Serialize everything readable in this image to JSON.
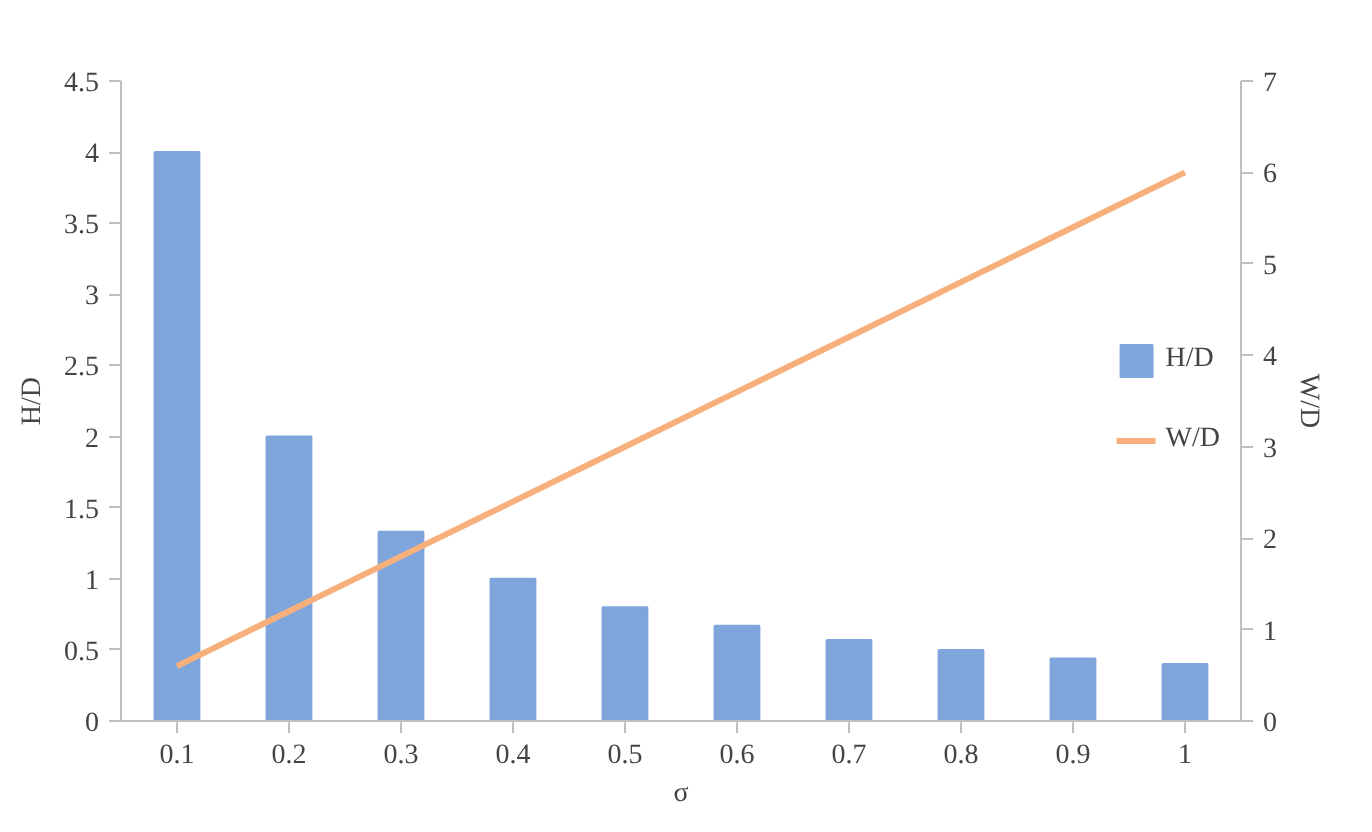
{
  "chart_data": {
    "type": "bar",
    "xlabel": "σ",
    "ylabel": "H/D",
    "y2label": "W/D",
    "categories": [
      "0.1",
      "0.2",
      "0.3",
      "0.4",
      "0.5",
      "0.6",
      "0.7",
      "0.8",
      "0.9",
      "1"
    ],
    "series": [
      {
        "name": "H/D",
        "color": "#7ea6dc",
        "values": [
          4,
          2,
          1.33,
          1,
          0.8,
          0.67,
          0.57,
          0.5,
          0.44,
          0.4
        ]
      },
      {
        "name": "W/D",
        "type": "line",
        "axis": "y2",
        "color": "#f7b07c",
        "values": [
          0.6,
          1.2,
          1.8,
          2.4,
          3,
          3.6,
          4.2,
          4.8,
          5.4,
          6
        ]
      }
    ],
    "ylim": [
      0,
      4.5
    ],
    "yticks": [
      0,
      0.5,
      1,
      1.5,
      2,
      2.5,
      3,
      3.5,
      4,
      4.5
    ],
    "y2lim": [
      0,
      7
    ],
    "y2ticks": [
      0,
      1,
      2,
      3,
      4,
      5,
      6,
      7
    ],
    "grid": false,
    "legend": "right",
    "marker": "none",
    "line_style": "solid"
  }
}
